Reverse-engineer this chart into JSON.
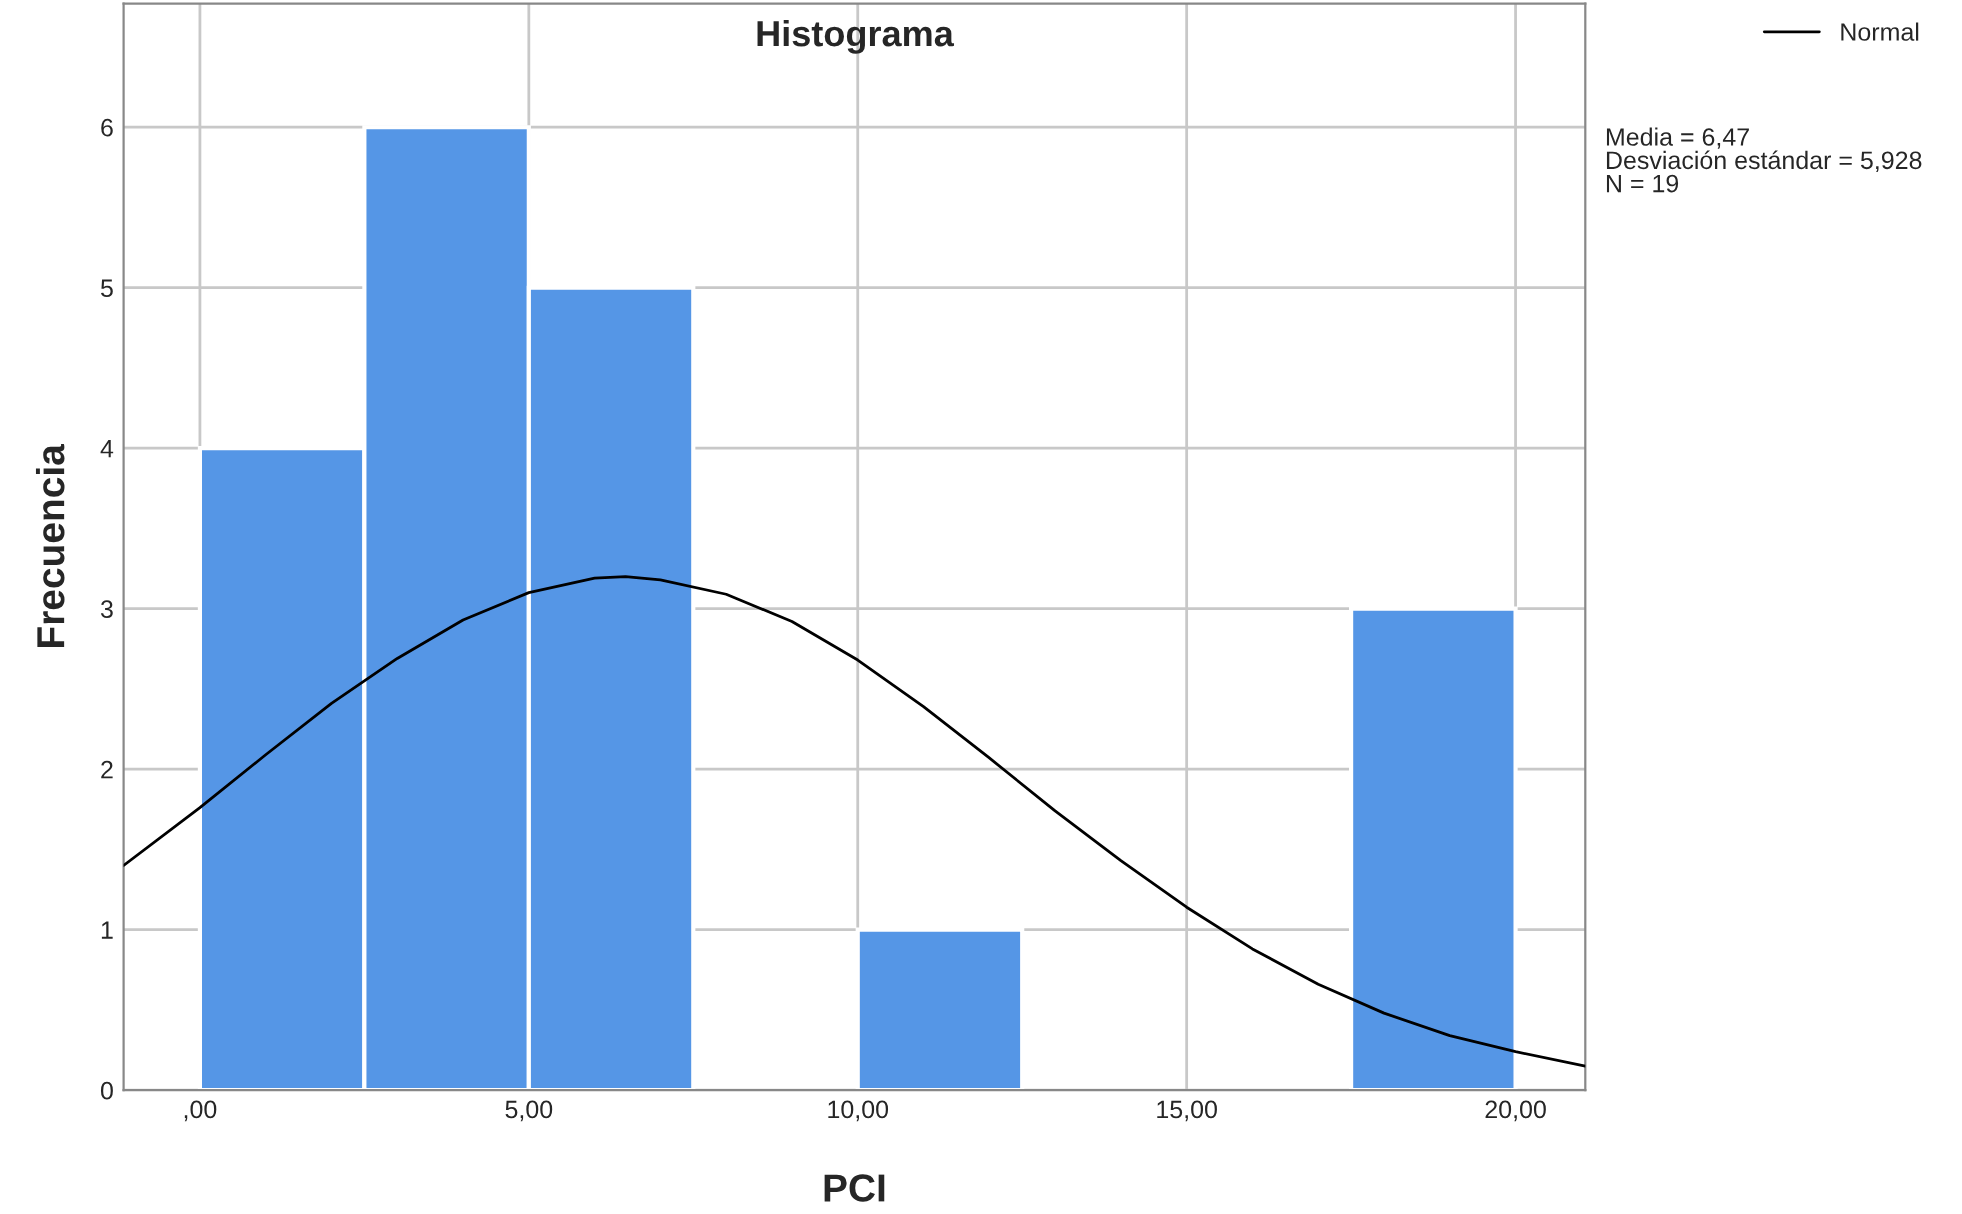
{
  "chart_data": {
    "type": "histogram",
    "title": "Histograma",
    "xlabel": "PCI",
    "ylabel": "Frecuencia",
    "bins": [
      0,
      2.5,
      5,
      7.5,
      10,
      12.5,
      15,
      17.5,
      20
    ],
    "values": [
      4,
      6,
      5,
      0,
      1,
      0,
      0,
      3
    ],
    "color": "#5596e6",
    "series": [
      {
        "name": "Normal",
        "type": "line",
        "color": "#000000",
        "x": [
          -1.16,
          0,
          1,
          2,
          3,
          4,
          5,
          6,
          6.47,
          7,
          8,
          9,
          10,
          11,
          12,
          13,
          14,
          15,
          16,
          17,
          18,
          19,
          20,
          21.06
        ],
        "values": [
          1.4,
          1.76,
          2.09,
          2.41,
          2.69,
          2.93,
          3.1,
          3.19,
          3.2,
          3.18,
          3.09,
          2.92,
          2.68,
          2.39,
          2.07,
          1.74,
          1.43,
          1.14,
          0.88,
          0.66,
          0.48,
          0.34,
          0.24,
          0.15
        ]
      }
    ],
    "xlim": [
      -1.16,
      21.06
    ],
    "ylim": [
      0,
      6.77
    ],
    "xticks": [
      {
        "value": 0,
        "label": ",00"
      },
      {
        "value": 5,
        "label": "5,00"
      },
      {
        "value": 10,
        "label": "10,00"
      },
      {
        "value": 15,
        "label": "15,00"
      },
      {
        "value": 20,
        "label": "20,00"
      }
    ],
    "yticks": [
      0,
      1,
      2,
      3,
      4,
      5,
      6
    ],
    "grid": true,
    "legend": "top right",
    "annotations": [
      "Media = 6,47\nDesviación estándar = 5,928\nN = 19"
    ]
  }
}
